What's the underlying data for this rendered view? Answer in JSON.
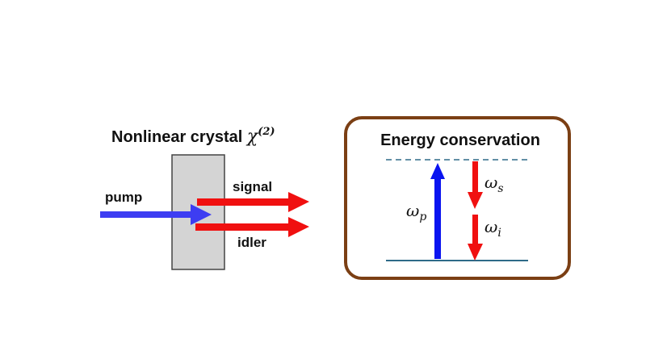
{
  "left_panel": {
    "title": "Nonlinear crystal",
    "title_symbol": "χ",
    "title_superscript": "(2)",
    "pump_label": "pump",
    "signal_label": "signal",
    "idler_label": "idler"
  },
  "right_panel": {
    "title": "Energy conservation",
    "pump_symbol": "ω",
    "pump_sub": "p",
    "signal_symbol": "ω",
    "signal_sub": "s",
    "idler_symbol": "ω",
    "idler_sub": "i"
  },
  "colors": {
    "pump": "#3d3df2",
    "pump_level": "#0a14f0",
    "signal_idler": "#f01010",
    "crystal_fill": "#d4d4d4",
    "box_border": "#7b3f14",
    "level_line": "#2e6a88"
  }
}
